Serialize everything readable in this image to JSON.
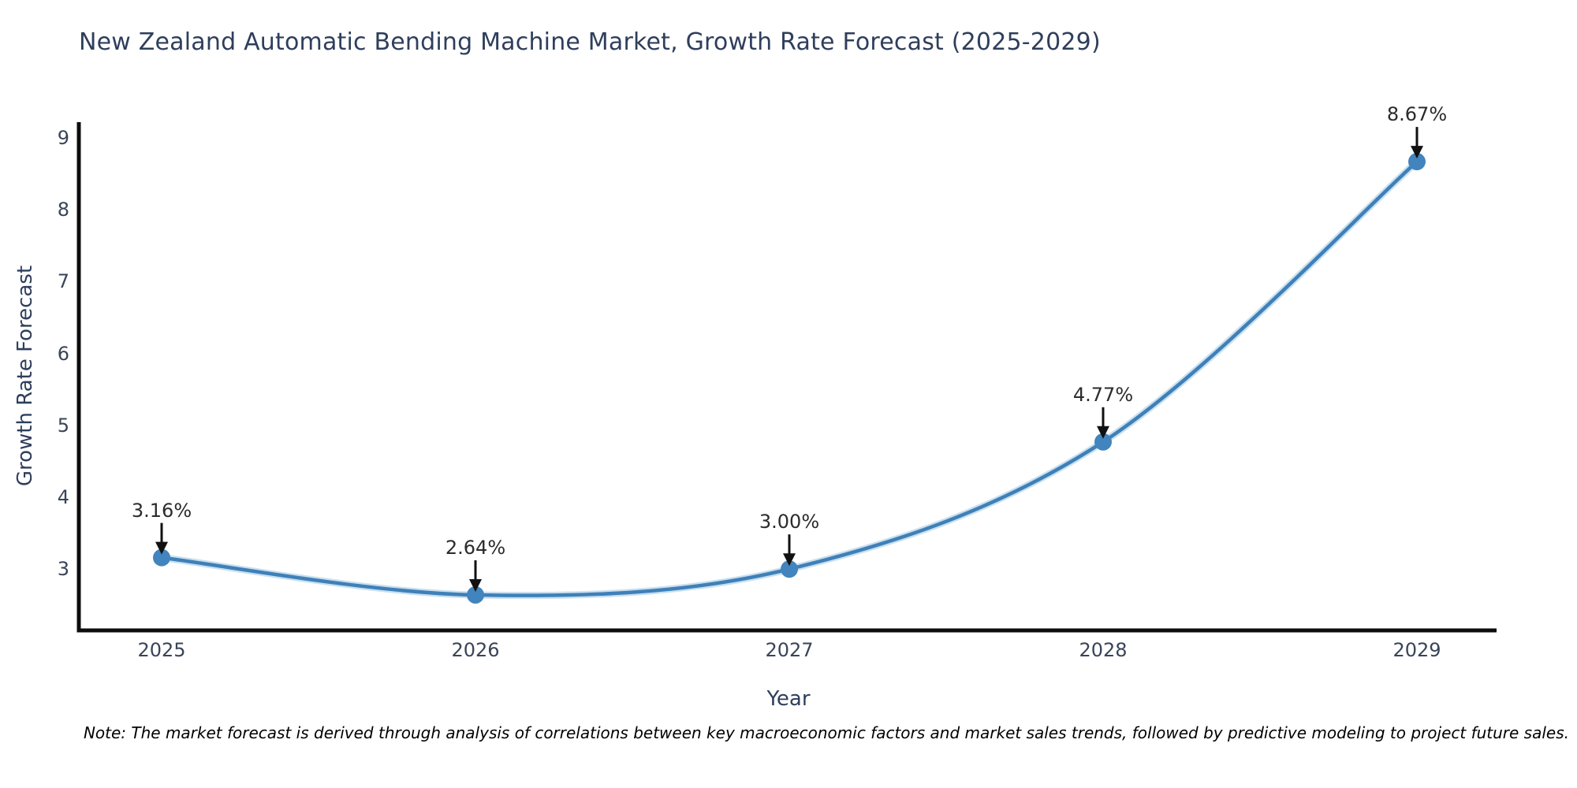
{
  "chart_data": {
    "type": "line",
    "title": "New Zealand Automatic Bending Machine Market, Growth Rate Forecast (2025-2029)",
    "xlabel": "Year",
    "ylabel": "Growth Rate Forecast",
    "x": [
      2025,
      2026,
      2027,
      2028,
      2029
    ],
    "values": [
      3.16,
      2.64,
      3.0,
      4.77,
      8.67
    ],
    "point_labels": [
      "3.16%",
      "2.64%",
      "3.00%",
      "4.77%",
      "8.67%"
    ],
    "yticks": [
      3,
      4,
      5,
      6,
      7,
      8,
      9
    ],
    "ylim": [
      2.15,
      9.22
    ],
    "xlim": [
      2024.74,
      2029.25
    ],
    "grid": false,
    "legend": null,
    "line_color": "#3f80b8",
    "line_glow_color": "#9dc6e4",
    "marker_color": "#4284bd",
    "axis_spine_color": "#0d0d0d",
    "annotation_arrow_color": "#111111"
  },
  "note": "Note: The market forecast is derived through analysis of correlations between key macroeconomic factors and market sales trends, followed by predictive modeling to project future sales."
}
